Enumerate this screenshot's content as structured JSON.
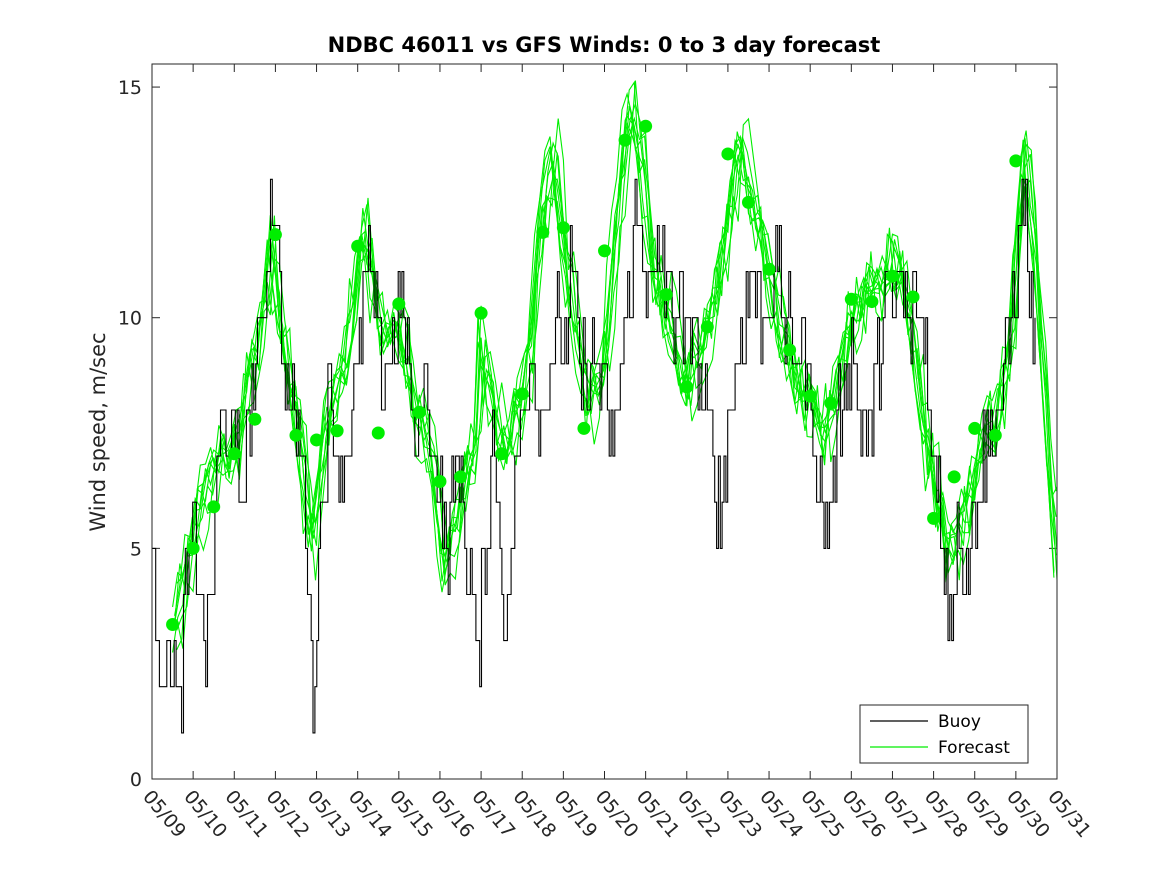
{
  "chart_data": {
    "type": "line",
    "title": "NDBC 46011 vs GFS Winds: 0 to 3 day forecast",
    "xlabel": "",
    "ylabel": "Wind speed, m/sec",
    "xlim": [
      0,
      22
    ],
    "ylim": [
      0,
      15.5
    ],
    "y_ticks": [
      0,
      5,
      10,
      15
    ],
    "x_tick_labels": [
      "05/09",
      "05/10",
      "05/11",
      "05/12",
      "05/13",
      "05/14",
      "05/15",
      "05/16",
      "05/17",
      "05/18",
      "05/19",
      "05/20",
      "05/21",
      "05/22",
      "05/23",
      "05/24",
      "05/25",
      "05/26",
      "05/27",
      "05/28",
      "05/29",
      "05/30",
      "05/31"
    ],
    "legend": {
      "placement": "bottom-right",
      "entries": [
        "Buoy",
        "Forecast"
      ]
    },
    "colors": {
      "buoy": "#000000",
      "forecast": "#00ee00",
      "markers": "#00ee00"
    },
    "buoy_key": [
      [
        0.0,
        4.5
      ],
      [
        0.15,
        3
      ],
      [
        0.3,
        2.3
      ],
      [
        0.55,
        2.5
      ],
      [
        0.65,
        1.2
      ],
      [
        0.8,
        3.5
      ],
      [
        1.0,
        5.5
      ],
      [
        1.2,
        4.0
      ],
      [
        1.3,
        2.2
      ],
      [
        1.5,
        5
      ],
      [
        1.6,
        7
      ],
      [
        1.8,
        8
      ],
      [
        2.0,
        7
      ],
      [
        2.2,
        6
      ],
      [
        2.4,
        8
      ],
      [
        2.6,
        9.5
      ],
      [
        2.8,
        11
      ],
      [
        2.9,
        13
      ],
      [
        3.0,
        12.5
      ],
      [
        3.2,
        9
      ],
      [
        3.4,
        8
      ],
      [
        3.6,
        7
      ],
      [
        3.8,
        5
      ],
      [
        3.9,
        1.2
      ],
      [
        4.0,
        3.5
      ],
      [
        4.1,
        6
      ],
      [
        4.3,
        8
      ],
      [
        4.5,
        7
      ],
      [
        4.7,
        6.5
      ],
      [
        5.0,
        9
      ],
      [
        5.2,
        11
      ],
      [
        5.4,
        10
      ],
      [
        5.6,
        8.5
      ],
      [
        5.8,
        9
      ],
      [
        6.0,
        10.5
      ],
      [
        6.2,
        9.5
      ],
      [
        6.4,
        6.5
      ],
      [
        6.6,
        9
      ],
      [
        6.8,
        7.5
      ],
      [
        7.0,
        6
      ],
      [
        7.2,
        5
      ],
      [
        7.4,
        7
      ],
      [
        7.6,
        5.5
      ],
      [
        7.8,
        4
      ],
      [
        7.9,
        2.2
      ],
      [
        8.1,
        5
      ],
      [
        8.3,
        7.5
      ],
      [
        8.5,
        5
      ],
      [
        8.6,
        3
      ],
      [
        8.8,
        6
      ],
      [
        9.0,
        8
      ],
      [
        9.2,
        9.5
      ],
      [
        9.4,
        7.5
      ],
      [
        9.6,
        8.5
      ],
      [
        9.8,
        10
      ],
      [
        10.0,
        9
      ],
      [
        10.2,
        11
      ],
      [
        10.4,
        9
      ],
      [
        10.6,
        8.5
      ],
      [
        10.8,
        9.5
      ],
      [
        11.0,
        8
      ],
      [
        11.2,
        7
      ],
      [
        11.4,
        9
      ],
      [
        11.6,
        10.5
      ],
      [
        11.8,
        12.5
      ],
      [
        12.0,
        11
      ],
      [
        12.2,
        10.5
      ],
      [
        12.4,
        11.5
      ],
      [
        12.6,
        10
      ],
      [
        12.8,
        10.5
      ],
      [
        13.0,
        9
      ],
      [
        13.2,
        10
      ],
      [
        13.4,
        8
      ],
      [
        13.6,
        7.5
      ],
      [
        13.8,
        5.5
      ],
      [
        14.0,
        8
      ],
      [
        14.2,
        9
      ],
      [
        14.4,
        10
      ],
      [
        14.6,
        11
      ],
      [
        14.8,
        10
      ],
      [
        15.0,
        10.5
      ],
      [
        15.2,
        11
      ],
      [
        15.4,
        10
      ],
      [
        15.6,
        9
      ],
      [
        15.8,
        9.5
      ],
      [
        16.0,
        8.5
      ],
      [
        16.2,
        6
      ],
      [
        16.4,
        5.5
      ],
      [
        16.6,
        7
      ],
      [
        16.8,
        8.5
      ],
      [
        17.0,
        9.5
      ],
      [
        17.2,
        8
      ],
      [
        17.4,
        7
      ],
      [
        17.6,
        8.5
      ],
      [
        17.8,
        10.5
      ],
      [
        18.0,
        10
      ],
      [
        18.2,
        11
      ],
      [
        18.4,
        9.5
      ],
      [
        18.6,
        10.5
      ],
      [
        18.8,
        9.5
      ],
      [
        19.0,
        7
      ],
      [
        19.2,
        5.5
      ],
      [
        19.4,
        3.5
      ],
      [
        19.6,
        5.5
      ],
      [
        19.8,
        4.8
      ],
      [
        20.0,
        6
      ],
      [
        20.2,
        7
      ],
      [
        20.4,
        7.5
      ],
      [
        20.6,
        8
      ],
      [
        20.8,
        9
      ],
      [
        21.0,
        11
      ],
      [
        21.2,
        12.5
      ],
      [
        21.4,
        9.5
      ],
      [
        21.5,
        9
      ]
    ],
    "forecast_key": [
      [
        0.5,
        3.5
      ],
      [
        0.8,
        4.2
      ],
      [
        1.0,
        5.5
      ],
      [
        1.3,
        6.2
      ],
      [
        1.6,
        6.8
      ],
      [
        2.0,
        7.2
      ],
      [
        2.3,
        8.5
      ],
      [
        2.6,
        9.5
      ],
      [
        2.9,
        11.8
      ],
      [
        3.1,
        10
      ],
      [
        3.4,
        8.5
      ],
      [
        3.7,
        6.5
      ],
      [
        3.9,
        5
      ],
      [
        4.2,
        7.5
      ],
      [
        4.5,
        8.5
      ],
      [
        4.8,
        9.5
      ],
      [
        5.0,
        11
      ],
      [
        5.2,
        12.2
      ],
      [
        5.4,
        10.5
      ],
      [
        5.7,
        9.5
      ],
      [
        6.0,
        10
      ],
      [
        6.3,
        8.5
      ],
      [
        6.6,
        7.5
      ],
      [
        6.9,
        6.5
      ],
      [
        7.1,
        4.5
      ],
      [
        7.3,
        5
      ],
      [
        7.6,
        6.5
      ],
      [
        7.9,
        7.5
      ],
      [
        8.0,
        9.5
      ],
      [
        8.3,
        8
      ],
      [
        8.6,
        7
      ],
      [
        8.9,
        8
      ],
      [
        9.2,
        9
      ],
      [
        9.5,
        12.5
      ],
      [
        9.8,
        13.5
      ],
      [
        10.1,
        11
      ],
      [
        10.4,
        9
      ],
      [
        10.7,
        8
      ],
      [
        11.0,
        9
      ],
      [
        11.3,
        12
      ],
      [
        11.6,
        14.5
      ],
      [
        11.9,
        13.5
      ],
      [
        12.1,
        11.5
      ],
      [
        12.4,
        10.5
      ],
      [
        12.7,
        9.5
      ],
      [
        13.0,
        8.5
      ],
      [
        13.3,
        9.5
      ],
      [
        13.6,
        10
      ],
      [
        14.0,
        12
      ],
      [
        14.3,
        14
      ],
      [
        14.6,
        12.5
      ],
      [
        14.9,
        11.5
      ],
      [
        15.2,
        10
      ],
      [
        15.5,
        9
      ],
      [
        15.8,
        8.5
      ],
      [
        16.1,
        8
      ],
      [
        16.4,
        7.5
      ],
      [
        16.7,
        8.5
      ],
      [
        17.0,
        10
      ],
      [
        17.3,
        10.5
      ],
      [
        17.6,
        10.8
      ],
      [
        17.9,
        11
      ],
      [
        18.2,
        11.2
      ],
      [
        18.5,
        9.5
      ],
      [
        18.8,
        7.5
      ],
      [
        19.1,
        6
      ],
      [
        19.4,
        5
      ],
      [
        19.7,
        5.5
      ],
      [
        20.0,
        6.5
      ],
      [
        20.3,
        7.5
      ],
      [
        20.6,
        8
      ],
      [
        20.9,
        9.5
      ],
      [
        21.2,
        14
      ],
      [
        21.5,
        11
      ],
      [
        21.8,
        7
      ],
      [
        22.0,
        4.5
      ]
    ],
    "forecast_markers": [
      [
        0.5,
        3.35
      ],
      [
        1.0,
        5.0
      ],
      [
        1.5,
        5.9
      ],
      [
        2.0,
        7.05
      ],
      [
        2.5,
        7.8
      ],
      [
        3.0,
        11.8
      ],
      [
        3.5,
        7.45
      ],
      [
        4.0,
        7.35
      ],
      [
        4.5,
        7.55
      ],
      [
        5.0,
        11.55
      ],
      [
        5.5,
        7.5
      ],
      [
        6.0,
        10.3
      ],
      [
        6.5,
        7.95
      ],
      [
        7.0,
        6.45
      ],
      [
        7.5,
        6.55
      ],
      [
        8.0,
        10.1
      ],
      [
        8.5,
        7.05
      ],
      [
        9.0,
        8.35
      ],
      [
        9.5,
        11.85
      ],
      [
        10.0,
        11.95
      ],
      [
        10.5,
        7.6
      ],
      [
        11.0,
        11.45
      ],
      [
        11.5,
        13.85
      ],
      [
        12.0,
        14.15
      ],
      [
        12.5,
        10.5
      ],
      [
        13.0,
        8.5
      ],
      [
        13.5,
        9.8
      ],
      [
        14.0,
        13.55
      ],
      [
        14.5,
        12.5
      ],
      [
        15.0,
        11.05
      ],
      [
        15.5,
        9.3
      ],
      [
        16.0,
        8.3
      ],
      [
        16.5,
        8.15
      ],
      [
        17.0,
        10.4
      ],
      [
        17.5,
        10.35
      ],
      [
        18.0,
        10.9
      ],
      [
        18.5,
        10.45
      ],
      [
        19.0,
        5.65
      ],
      [
        19.5,
        6.55
      ],
      [
        20.0,
        7.6
      ],
      [
        20.5,
        7.45
      ],
      [
        21.0,
        13.4
      ]
    ]
  }
}
